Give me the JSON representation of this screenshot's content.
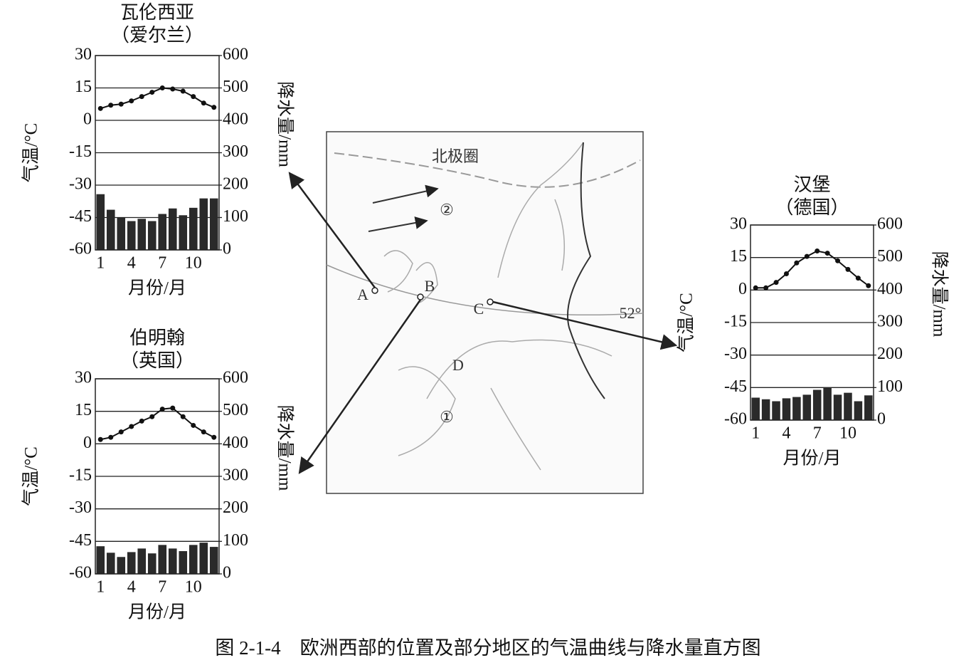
{
  "chart_data": [
    {
      "type": "combo",
      "title": "瓦伦西亚",
      "subtitle": "（爱尔兰）",
      "ylabel": "气温/°C",
      "y2label": "降水量/mm",
      "xlabel": "月份/月",
      "categories": [
        "1",
        null,
        null,
        "4",
        null,
        null,
        "7",
        null,
        null,
        "10",
        null,
        null
      ],
      "ylim": [
        -60,
        30
      ],
      "yticks": [
        30,
        15,
        0,
        -15,
        -30,
        -45,
        -60
      ],
      "y2lim": [
        0,
        600
      ],
      "y2ticks": [
        600,
        500,
        400,
        300,
        200,
        100,
        0
      ],
      "grid": true,
      "series": [
        {
          "type": "bar",
          "axis": "y2",
          "color": "#2a2a2a",
          "values": [
            172,
            124,
            100,
            89,
            96,
            89,
            111,
            128,
            107,
            130,
            159,
            159
          ]
        },
        {
          "type": "line",
          "color": "#111",
          "values": [
            5.5,
            7,
            7.5,
            9,
            11,
            13,
            15,
            14.5,
            13.5,
            11,
            8,
            6
          ]
        }
      ]
    },
    {
      "type": "combo",
      "title": "伯明翰",
      "subtitle": "（英国）",
      "ylabel": "气温/°C",
      "y2label": "降水量/mm",
      "xlabel": "月份/月",
      "categories": [
        "1",
        null,
        null,
        "4",
        null,
        null,
        "7",
        null,
        null,
        "10",
        null,
        null
      ],
      "ylim": [
        -60,
        30
      ],
      "yticks": [
        30,
        15,
        0,
        -15,
        -30,
        -45,
        -60
      ],
      "y2lim": [
        0,
        600
      ],
      "y2ticks": [
        600,
        500,
        400,
        300,
        200,
        100,
        0
      ],
      "grid": true,
      "series": [
        {
          "type": "bar",
          "axis": "y2",
          "color": "#2a2a2a",
          "values": [
            85,
            65,
            52,
            67,
            78,
            63,
            89,
            78,
            70,
            89,
            96,
            83
          ]
        },
        {
          "type": "line",
          "color": "#111",
          "values": [
            2,
            3,
            5.5,
            8,
            10.5,
            12.5,
            16,
            16.5,
            12.5,
            8.5,
            5.5,
            3
          ]
        }
      ]
    },
    {
      "type": "combo",
      "title": "汉堡",
      "subtitle": "（德国）",
      "ylabel": "气温/°C",
      "y2label": "降水量/mm",
      "xlabel": "月份/月",
      "categories": [
        "1",
        null,
        null,
        "4",
        null,
        null,
        "7",
        null,
        null,
        "10",
        null,
        null
      ],
      "ylim": [
        -60,
        30
      ],
      "yticks": [
        30,
        15,
        0,
        -15,
        -30,
        -45,
        -60
      ],
      "y2lim": [
        0,
        600
      ],
      "y2ticks": [
        600,
        500,
        400,
        300,
        200,
        100,
        0
      ],
      "grid": true,
      "series": [
        {
          "type": "bar",
          "axis": "y2",
          "color": "#2a2a2a",
          "values": [
            69,
            64,
            58,
            67,
            71,
            78,
            93,
            100,
            78,
            84,
            58,
            76
          ]
        },
        {
          "type": "line",
          "color": "#111",
          "values": [
            1,
            1,
            3.5,
            7.5,
            12.5,
            15.5,
            18,
            17,
            13.5,
            9.5,
            5.5,
            2
          ]
        }
      ]
    }
  ],
  "map": {
    "labels": [
      "北极圈",
      "52°",
      "A",
      "B",
      "C",
      "D",
      "①",
      "②"
    ]
  },
  "caption": "图 2-1-4　欧洲西部的位置及部分地区的气温曲线与降水量直方图"
}
